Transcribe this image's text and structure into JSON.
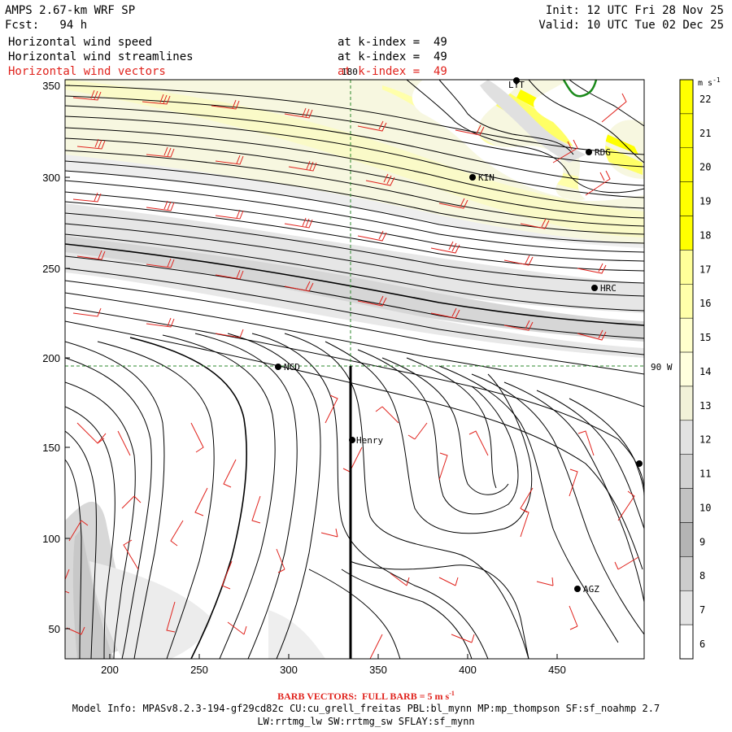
{
  "header": {
    "model": "AMPS 2.67-km WRF SP",
    "fcst": "Fcst:   94 h",
    "init": "Init: 12 UTC Fri 28 Nov 25",
    "valid": "Valid: 10 UTC Tue 02 Dec 25"
  },
  "fields": [
    {
      "name": "Horizontal wind speed",
      "level": "at k-index =  49",
      "color": "#000000"
    },
    {
      "name": "Horizontal wind streamlines",
      "level": "at k-index =  49",
      "color": "#000000"
    },
    {
      "name": "Horizontal wind vectors",
      "level": "at k-index =  49",
      "color": "#e0221c"
    }
  ],
  "axes": {
    "x_ticks": [
      "200",
      "250",
      "300",
      "350",
      "400",
      "450"
    ],
    "y_ticks": [
      "350",
      "300",
      "250",
      "200",
      "150",
      "100",
      "50"
    ],
    "meridian_label": "180",
    "parallel_label": "90 W"
  },
  "stations": [
    {
      "id": "LYT"
    },
    {
      "id": "RDG"
    },
    {
      "id": "KIN"
    },
    {
      "id": "HRC"
    },
    {
      "id": "NCD"
    },
    {
      "id": "Henry"
    },
    {
      "id": "AGZ"
    }
  ],
  "colorbar": {
    "unit": "m s",
    "unit_exp": "-1",
    "levels": [
      "22",
      "21",
      "20",
      "19",
      "18",
      "17",
      "16",
      "15",
      "14",
      "13",
      "12",
      "11",
      "10",
      "9",
      "8",
      "7",
      "6"
    ],
    "colors": [
      "#ffff00",
      "#ffff00",
      "#ffff00",
      "#ffff00",
      "#ffff00",
      "#ffff99",
      "#ffffaa",
      "#ffffcc",
      "#ffffdd",
      "#f2f2d8",
      "#e2e2e2",
      "#d2d2d2",
      "#c2c2c2",
      "#b4b4b4",
      "#cccccc",
      "#e4e4e4",
      "#ffffff"
    ]
  },
  "footer": {
    "barb_note": "BARB VECTORS:  FULL BARB = 5 m s",
    "barb_exp": "-1",
    "model_info": "Model Info: MPASv8.2.3-194-gf29cd82c CU:cu_grell_freitas PBL:bl_mynn MP:mp_thompson SF:sf_noahmp 2.7",
    "model_info2": "LW:rrtmg_lw SW:rrtmg_sw SFLAY:sf_mynn"
  }
}
